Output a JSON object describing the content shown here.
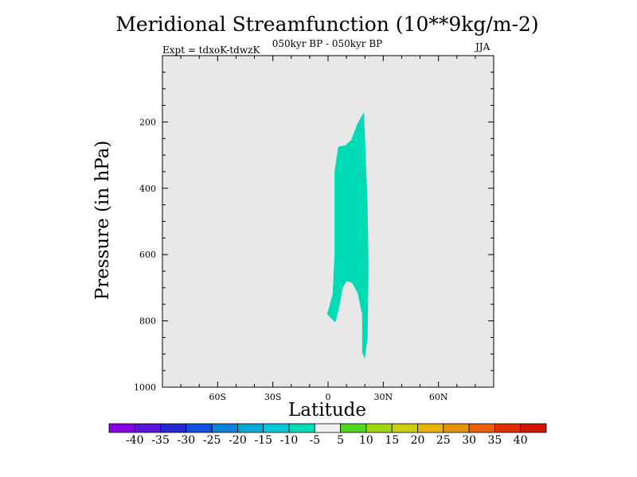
{
  "chart_data": {
    "type": "contour",
    "title": "Meridional Streamfunction (10**9kg/m-2)",
    "subtitle": "050kyr BP - 050kyr BP",
    "experiment": "Expt = tdxoK-tdwzK",
    "season": "JJA",
    "xlabel": "Latitude",
    "ylabel": "Pressure (in hPa)",
    "x_range": [
      -90,
      90
    ],
    "y_range": [
      0,
      1000
    ],
    "y_scale": "linear-reversed",
    "x_ticks": [
      {
        "value": -60,
        "label": "60S"
      },
      {
        "value": -30,
        "label": "30S"
      },
      {
        "value": 0,
        "label": "0"
      },
      {
        "value": 30,
        "label": "30N"
      },
      {
        "value": 60,
        "label": "60N"
      }
    ],
    "y_ticks": [
      {
        "value": 200,
        "label": "200"
      },
      {
        "value": 400,
        "label": "400"
      },
      {
        "value": 600,
        "label": "600"
      },
      {
        "value": 800,
        "label": "800"
      },
      {
        "value": 1000,
        "label": "1000"
      }
    ],
    "background_color": "#e8e8e8",
    "filled_regions": [
      {
        "level_range": [
          -10,
          -5
        ],
        "color": "#00dbb5",
        "polygon": [
          [
            19.5,
            170
          ],
          [
            21.5,
            450
          ],
          [
            22,
            640
          ],
          [
            21.5,
            850
          ],
          [
            20,
            915
          ],
          [
            18.5,
            895
          ],
          [
            18.5,
            780
          ],
          [
            16,
            715
          ],
          [
            13,
            685
          ],
          [
            10,
            680
          ],
          [
            8,
            700
          ],
          [
            6,
            760
          ],
          [
            4,
            805
          ],
          [
            -0.5,
            780
          ],
          [
            2.5,
            720
          ],
          [
            3.5,
            600
          ],
          [
            3.5,
            350
          ],
          [
            5.5,
            275
          ],
          [
            9.5,
            270
          ],
          [
            12.5,
            255
          ],
          [
            16,
            205
          ]
        ]
      }
    ],
    "colorbar": {
      "labels": [
        "-40",
        "-35",
        "-30",
        "-25",
        "-20",
        "-15",
        "-10",
        "-5",
        "5",
        "10",
        "15",
        "20",
        "25",
        "30",
        "35",
        "40"
      ],
      "colors": [
        "#8800e0",
        "#5a14d8",
        "#2828d0",
        "#1450e0",
        "#0a82d8",
        "#00a8d8",
        "#00c8d8",
        "#00dbb5",
        "#f2f2f2",
        "#50d820",
        "#a0d80a",
        "#ccd000",
        "#e8b400",
        "#e89400",
        "#e86000",
        "#e03000",
        "#d01800"
      ]
    }
  }
}
